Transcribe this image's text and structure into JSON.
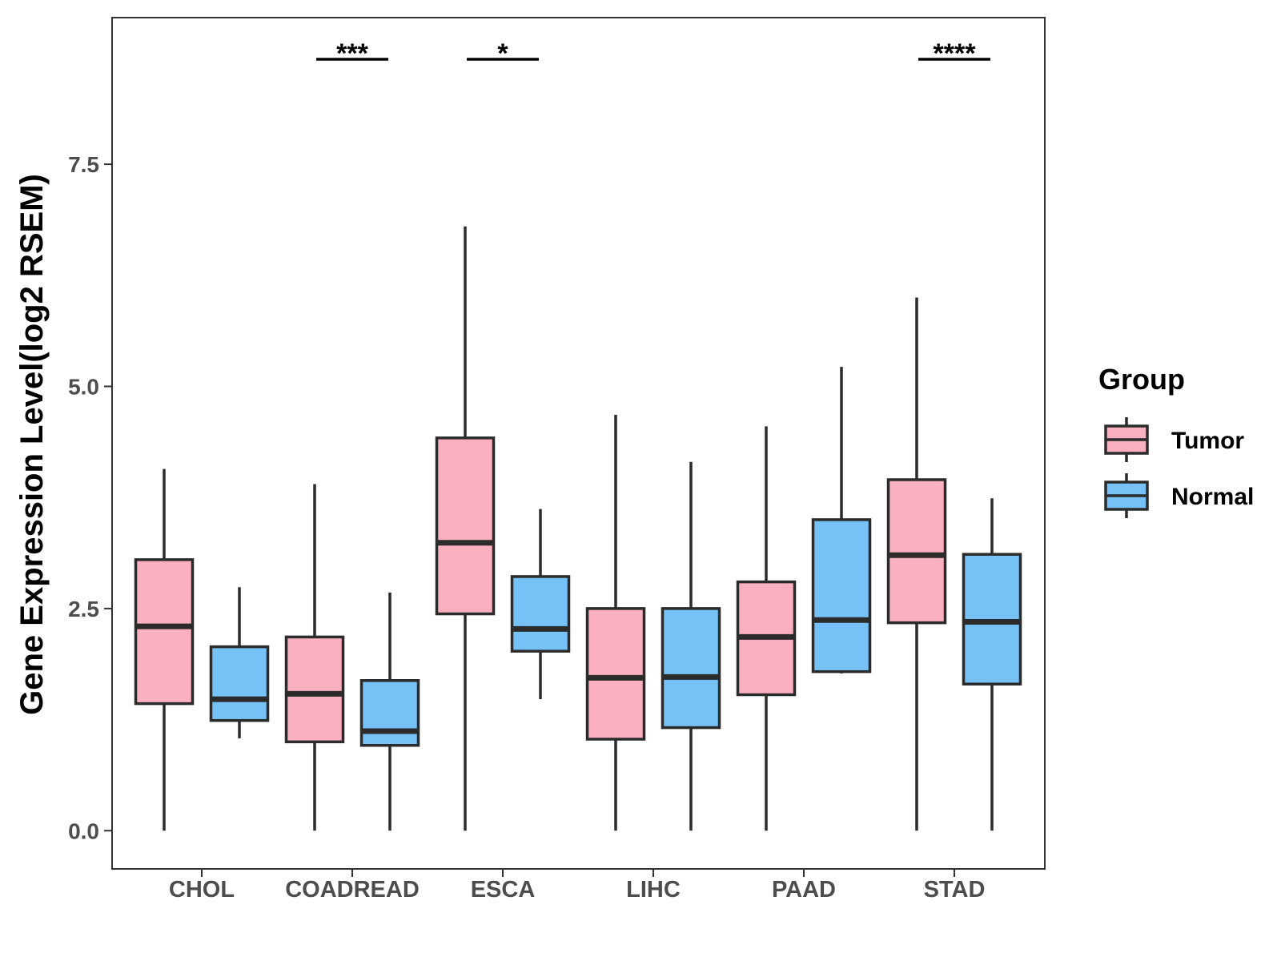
{
  "chart_data": {
    "type": "boxplot",
    "title": "",
    "xlabel": "",
    "ylabel": "Gene Expression Level(log2 RSEM)",
    "ylim": [
      -0.43,
      9.15
    ],
    "yticks": [
      0.0,
      2.5,
      5.0,
      7.5
    ],
    "ytick_labels": [
      "0.0",
      "2.5",
      "5.0",
      "7.5"
    ],
    "grid": false,
    "categories": [
      "CHOL",
      "COADREAD",
      "ESCA",
      "LIHC",
      "PAAD",
      "STAD"
    ],
    "legend": {
      "title": "Group",
      "position": "right",
      "entries": [
        "Tumor",
        "Normal"
      ]
    },
    "colors": {
      "Tumor": "#fbb0c0",
      "Normal": "#76c2f7",
      "outline": "#2b2b2b"
    },
    "series": [
      {
        "name": "Tumor",
        "boxes": [
          {
            "min": 0.0,
            "q1": 1.43,
            "median": 2.3,
            "q3": 3.05,
            "max": 4.07
          },
          {
            "min": 0.0,
            "q1": 1.0,
            "median": 1.54,
            "q3": 2.18,
            "max": 3.9
          },
          {
            "min": 0.0,
            "q1": 2.44,
            "median": 3.24,
            "q3": 4.42,
            "max": 6.8
          },
          {
            "min": 0.0,
            "q1": 1.03,
            "median": 1.72,
            "q3": 2.5,
            "max": 4.68
          },
          {
            "min": 0.0,
            "q1": 1.53,
            "median": 2.18,
            "q3": 2.8,
            "max": 4.55
          },
          {
            "min": 0.0,
            "q1": 2.34,
            "median": 3.1,
            "q3": 3.95,
            "max": 6.0
          }
        ]
      },
      {
        "name": "Normal",
        "boxes": [
          {
            "min": 1.04,
            "q1": 1.24,
            "median": 1.48,
            "q3": 2.07,
            "max": 2.74
          },
          {
            "min": 0.0,
            "q1": 0.96,
            "median": 1.12,
            "q3": 1.69,
            "max": 2.68
          },
          {
            "min": 1.48,
            "q1": 2.02,
            "median": 2.27,
            "q3": 2.86,
            "max": 3.62
          },
          {
            "min": 0.0,
            "q1": 1.16,
            "median": 1.73,
            "q3": 2.5,
            "max": 4.15
          },
          {
            "min": 1.77,
            "q1": 1.79,
            "median": 2.37,
            "q3": 3.5,
            "max": 5.22
          },
          {
            "min": 0.0,
            "q1": 1.65,
            "median": 2.35,
            "q3": 3.11,
            "max": 3.74
          }
        ]
      }
    ],
    "significance": [
      {
        "category": "COADREAD",
        "label": "***"
      },
      {
        "category": "ESCA",
        "label": "*"
      },
      {
        "category": "STAD",
        "label": "****"
      }
    ]
  }
}
